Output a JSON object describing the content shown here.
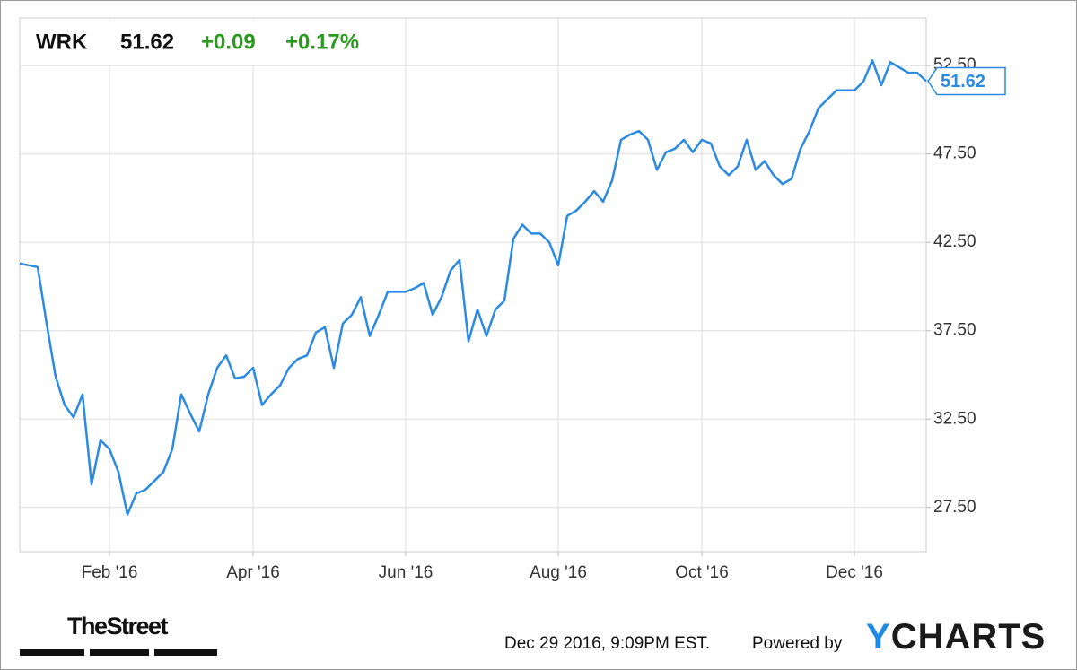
{
  "chart_data": {
    "type": "line",
    "ticker": "WRK",
    "price": "51.62",
    "change": "+0.09",
    "change_pct": "+0.17%",
    "color": "#2b8ae2",
    "up_color": "#2a9a1f",
    "grid": true,
    "categories": [
      null,
      null,
      null,
      null,
      null,
      null,
      null,
      null,
      null,
      null,
      "Feb '16",
      null,
      null,
      null,
      null,
      null,
      null,
      null,
      null,
      null,
      null,
      null,
      null,
      null,
      null,
      null,
      "Apr '16",
      null,
      null,
      null,
      null,
      null,
      null,
      null,
      null,
      null,
      null,
      null,
      null,
      null,
      null,
      null,
      null,
      "Jun '16",
      null,
      null,
      null,
      null,
      null,
      null,
      null,
      null,
      null,
      null,
      null,
      null,
      null,
      null,
      null,
      null,
      "Aug '16",
      null,
      null,
      null,
      null,
      null,
      null,
      null,
      null,
      null,
      null,
      null,
      null,
      null,
      null,
      null,
      "Oct '16",
      null,
      null,
      null,
      null,
      null,
      null,
      null,
      null,
      null,
      null,
      null,
      null,
      null,
      null,
      null,
      null,
      "Dec '16",
      null,
      null,
      null,
      null,
      null,
      null,
      null,
      null
    ],
    "values": [
      41.3,
      41.2,
      41.1,
      37.9,
      34.9,
      33.3,
      32.6,
      33.9,
      28.8,
      31.3,
      30.8,
      29.5,
      27.1,
      28.3,
      28.5,
      29.0,
      29.5,
      30.8,
      33.9,
      32.8,
      31.8,
      33.9,
      35.4,
      36.1,
      34.8,
      34.9,
      35.4,
      33.3,
      33.9,
      34.4,
      35.4,
      35.9,
      36.1,
      37.4,
      37.7,
      35.4,
      37.9,
      38.4,
      39.4,
      37.2,
      38.4,
      39.7,
      39.7,
      39.7,
      39.9,
      40.2,
      38.4,
      39.4,
      40.9,
      41.5,
      36.9,
      38.7,
      37.2,
      38.7,
      39.2,
      42.7,
      43.5,
      43.0,
      43.0,
      42.5,
      41.2,
      44.0,
      44.3,
      44.8,
      45.4,
      44.8,
      46.0,
      48.3,
      48.6,
      48.8,
      48.3,
      46.6,
      47.6,
      47.8,
      48.3,
      47.6,
      48.3,
      48.1,
      46.8,
      46.3,
      46.8,
      48.3,
      46.6,
      47.1,
      46.3,
      45.8,
      46.1,
      47.8,
      48.8,
      50.1,
      50.6,
      51.1,
      51.1,
      51.1,
      51.6,
      52.8,
      51.4,
      52.7,
      52.4,
      52.1,
      52.1,
      51.62
    ],
    "ylim": [
      25,
      55.2
    ],
    "yticks": [
      {
        "value": 27.5,
        "label": "27.50"
      },
      {
        "value": 32.5,
        "label": "32.50"
      },
      {
        "value": 37.5,
        "label": "37.50"
      },
      {
        "value": 42.5,
        "label": "42.50"
      },
      {
        "value": 47.5,
        "label": "47.50"
      },
      {
        "value": 52.5,
        "label": "52.50"
      }
    ],
    "source": "TheStreet",
    "timestamp": "Dec 29 2016, 9:09PM EST.",
    "powered_by": "Powered by",
    "brand": "YCHARTS"
  }
}
